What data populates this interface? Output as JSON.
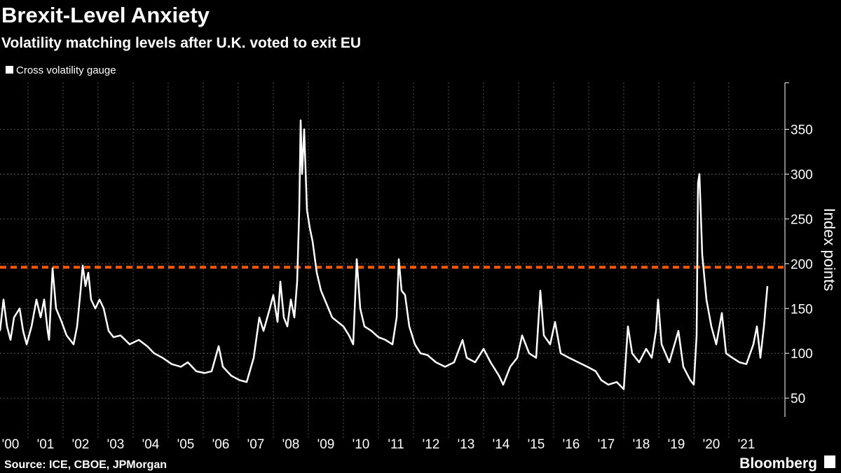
{
  "chart_data": {
    "type": "line",
    "title": "Brexit-Level Anxiety",
    "subtitle": "Volatility matching levels after U.K. voted to exit EU",
    "y_axis_label": "Index points",
    "source": "Source: ICE, CBOE, JPMorgan",
    "branding": "Bloomberg",
    "xlim": [
      2000.2,
      2022.56
    ],
    "ylim": [
      29,
      402
    ],
    "yticks": [
      50,
      100,
      150,
      200,
      250,
      300,
      350
    ],
    "xticks": [
      {
        "value": 2000,
        "label": "'00"
      },
      {
        "value": 2001,
        "label": "'01"
      },
      {
        "value": 2002,
        "label": "'02"
      },
      {
        "value": 2003,
        "label": "'03"
      },
      {
        "value": 2004,
        "label": "'04"
      },
      {
        "value": 2005,
        "label": "'05"
      },
      {
        "value": 2006,
        "label": "'06"
      },
      {
        "value": 2007,
        "label": "'07"
      },
      {
        "value": 2008,
        "label": "'08"
      },
      {
        "value": 2009,
        "label": "'09"
      },
      {
        "value": 2010,
        "label": "'10"
      },
      {
        "value": 2011,
        "label": "'11"
      },
      {
        "value": 2012,
        "label": "'12"
      },
      {
        "value": 2013,
        "label": "'13"
      },
      {
        "value": 2014,
        "label": "'14"
      },
      {
        "value": 2015,
        "label": "'15"
      },
      {
        "value": 2016,
        "label": "'16"
      },
      {
        "value": 2017,
        "label": "'17"
      },
      {
        "value": 2018,
        "label": "'18"
      },
      {
        "value": 2019,
        "label": "'19"
      },
      {
        "value": 2020,
        "label": "'20"
      },
      {
        "value": 2021,
        "label": "'21"
      }
    ],
    "grid": true,
    "legend": "top-left",
    "reference_line": {
      "value": 196,
      "color": "#ff5a00"
    },
    "x": [
      2000.2,
      2000.3,
      2000.4,
      2000.5,
      2000.6,
      2000.76,
      2000.86,
      2000.96,
      2001.1,
      2001.24,
      2001.36,
      2001.46,
      2001.56,
      2001.6,
      2001.7,
      2001.8,
      2001.96,
      2002.1,
      2002.2,
      2002.3,
      2002.4,
      2002.5,
      2002.56,
      2002.64,
      2002.72,
      2002.8,
      2002.92,
      2003.04,
      2003.16,
      2003.3,
      2003.44,
      2003.64,
      2003.9,
      2004.16,
      2004.4,
      2004.6,
      2004.84,
      2005.1,
      2005.36,
      2005.56,
      2005.8,
      2006.04,
      2006.24,
      2006.44,
      2006.56,
      2006.8,
      2007.04,
      2007.24,
      2007.44,
      2007.6,
      2007.72,
      2007.9,
      2008.0,
      2008.12,
      2008.2,
      2008.3,
      2008.4,
      2008.5,
      2008.6,
      2008.68,
      2008.74,
      2008.78,
      2008.82,
      2008.88,
      2008.96,
      2009.04,
      2009.12,
      2009.24,
      2009.36,
      2009.52,
      2009.68,
      2009.84,
      2010.0,
      2010.16,
      2010.28,
      2010.38,
      2010.48,
      2010.6,
      2010.8,
      2011.0,
      2011.2,
      2011.4,
      2011.52,
      2011.58,
      2011.66,
      2011.76,
      2011.88,
      2012.04,
      2012.2,
      2012.4,
      2012.64,
      2012.9,
      2013.16,
      2013.4,
      2013.52,
      2013.76,
      2014.0,
      2014.2,
      2014.44,
      2014.56,
      2014.76,
      2014.96,
      2015.1,
      2015.3,
      2015.5,
      2015.62,
      2015.72,
      2015.9,
      2016.04,
      2016.2,
      2016.44,
      2016.7,
      2016.96,
      2017.2,
      2017.36,
      2017.56,
      2017.8,
      2018.0,
      2018.12,
      2018.24,
      2018.44,
      2018.64,
      2018.8,
      2018.92,
      2018.98,
      2019.08,
      2019.3,
      2019.56,
      2019.7,
      2019.9,
      2020.0,
      2020.08,
      2020.12,
      2020.16,
      2020.24,
      2020.36,
      2020.5,
      2020.64,
      2020.8,
      2020.92,
      2021.1,
      2021.3,
      2021.5,
      2021.7,
      2021.8,
      2021.9,
      2022.0,
      2022.1
    ],
    "series": [
      {
        "name": "Cross volatility gauge",
        "color": "#ffffff",
        "values": [
          125,
          160,
          130,
          115,
          140,
          150,
          125,
          110,
          130,
          160,
          140,
          160,
          125,
          115,
          195,
          150,
          135,
          120,
          115,
          110,
          130,
          170,
          198,
          175,
          190,
          160,
          150,
          160,
          150,
          125,
          118,
          120,
          110,
          115,
          108,
          100,
          95,
          88,
          85,
          90,
          80,
          78,
          80,
          108,
          85,
          75,
          70,
          68,
          95,
          140,
          125,
          150,
          165,
          135,
          180,
          140,
          130,
          160,
          140,
          180,
          260,
          360,
          300,
          350,
          260,
          240,
          225,
          190,
          170,
          155,
          140,
          135,
          130,
          120,
          110,
          205,
          150,
          130,
          125,
          118,
          115,
          110,
          140,
          205,
          170,
          165,
          130,
          110,
          100,
          98,
          90,
          85,
          90,
          115,
          95,
          90,
          105,
          90,
          75,
          65,
          85,
          95,
          120,
          100,
          95,
          170,
          120,
          110,
          135,
          100,
          95,
          90,
          85,
          80,
          70,
          65,
          68,
          60,
          130,
          100,
          90,
          105,
          95,
          125,
          160,
          110,
          90,
          125,
          85,
          70,
          65,
          120,
          290,
          300,
          210,
          160,
          130,
          110,
          145,
          100,
          95,
          90,
          88,
          110,
          130,
          95,
          130,
          175
        ]
      }
    ]
  }
}
